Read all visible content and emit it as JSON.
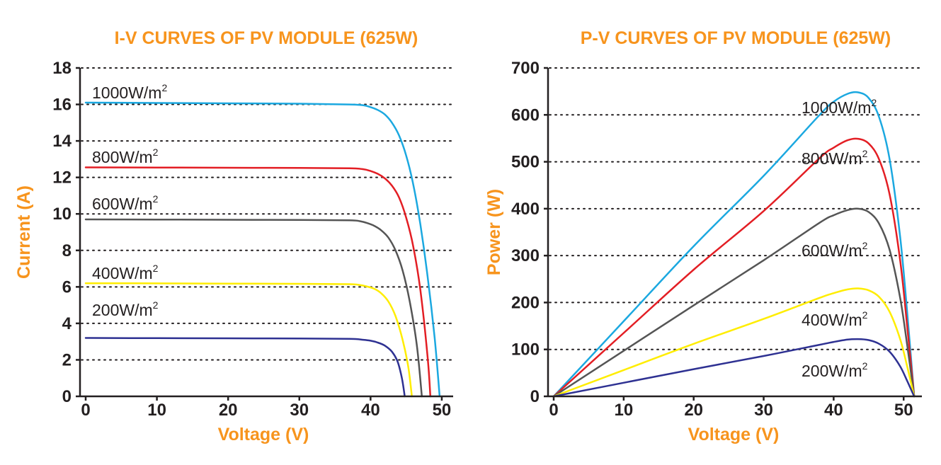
{
  "chart_data": [
    {
      "type": "line",
      "title": "I-V CURVES OF PV MODULE (625W)",
      "xlabel": "Voltage (V)",
      "ylabel": "Current (A)",
      "xlim": [
        0,
        51
      ],
      "ylim": [
        0,
        18
      ],
      "xticks": [
        0,
        10,
        20,
        30,
        40,
        50
      ],
      "yticks": [
        0,
        2,
        4,
        6,
        8,
        10,
        12,
        14,
        16,
        18
      ],
      "grid": "horizontal-dotted",
      "series": [
        {
          "name": "1000W/m",
          "sup": "2",
          "color": "#1ba8e0",
          "x": [
            0,
            10,
            20,
            30,
            37,
            39,
            40,
            41,
            42,
            43,
            44,
            45,
            46,
            47,
            48,
            49,
            49.7
          ],
          "y": [
            16.1,
            16.08,
            16.06,
            16.04,
            16.0,
            15.95,
            15.85,
            15.7,
            15.45,
            15.0,
            14.3,
            13.2,
            11.6,
            9.4,
            6.6,
            3.2,
            0
          ]
        },
        {
          "name": "800W/m",
          "sup": "2",
          "color": "#e31e24",
          "x": [
            0,
            10,
            20,
            30,
            37,
            39,
            40,
            41,
            42,
            43,
            44,
            45,
            46,
            47,
            48,
            48.4
          ],
          "y": [
            12.55,
            12.54,
            12.53,
            12.52,
            12.5,
            12.45,
            12.35,
            12.2,
            11.95,
            11.55,
            10.9,
            9.8,
            8.2,
            5.8,
            2.2,
            0
          ]
        },
        {
          "name": "600W/m",
          "sup": "2",
          "color": "#555555",
          "x": [
            0,
            10,
            20,
            30,
            37,
            38.5,
            39.5,
            40.5,
            41.5,
            42.5,
            43.5,
            44.5,
            45.5,
            46.5,
            47.2
          ],
          "y": [
            9.7,
            9.69,
            9.68,
            9.67,
            9.65,
            9.6,
            9.5,
            9.35,
            9.1,
            8.7,
            8.0,
            6.9,
            5.2,
            2.8,
            0
          ]
        },
        {
          "name": "400W/m",
          "sup": "2",
          "color": "#ffed00",
          "x": [
            0,
            10,
            20,
            30,
            37,
            38.5,
            39.5,
            40.5,
            41.5,
            42.5,
            43.5,
            44.5,
            45.3,
            45.8
          ],
          "y": [
            6.2,
            6.19,
            6.18,
            6.17,
            6.15,
            6.1,
            6.02,
            5.9,
            5.65,
            5.2,
            4.4,
            3.1,
            1.6,
            0
          ]
        },
        {
          "name": "200W/m",
          "sup": "2",
          "color": "#2e3192",
          "x": [
            0,
            10,
            20,
            30,
            37,
            39,
            40,
            41,
            42,
            43,
            43.8,
            44.4,
            44.8
          ],
          "y": [
            3.2,
            3.19,
            3.18,
            3.17,
            3.15,
            3.1,
            3.05,
            2.95,
            2.78,
            2.45,
            1.9,
            1.0,
            0
          ]
        }
      ]
    },
    {
      "type": "line",
      "title": "P-V CURVES OF PV MODULE (625W)",
      "xlabel": "Voltage (V)",
      "ylabel": "Power (W)",
      "xlim": [
        0,
        52
      ],
      "ylim": [
        0,
        700
      ],
      "xticks": [
        0,
        10,
        20,
        30,
        40,
        50
      ],
      "yticks": [
        0,
        100,
        200,
        300,
        400,
        500,
        600,
        700
      ],
      "grid": "horizontal-dotted",
      "series": [
        {
          "name": "1000W/m",
          "sup": "2",
          "color": "#1ba8e0",
          "x": [
            0,
            10,
            20,
            30,
            38,
            40,
            42,
            43.5,
            45,
            46.5,
            48,
            49.5,
            50.5,
            51.5
          ],
          "y": [
            0,
            160,
            320,
            470,
            600,
            628,
            645,
            648,
            636,
            595,
            505,
            340,
            180,
            0
          ]
        },
        {
          "name": "800W/m",
          "sup": "2",
          "color": "#e31e24",
          "x": [
            0,
            10,
            20,
            30,
            38,
            40,
            42,
            43.5,
            45,
            46.5,
            48,
            49.5,
            50.5,
            51.5
          ],
          "y": [
            0,
            135,
            270,
            395,
            508,
            530,
            546,
            549,
            539,
            505,
            430,
            290,
            150,
            0
          ]
        },
        {
          "name": "600W/m",
          "sup": "2",
          "color": "#555555",
          "x": [
            0,
            10,
            20,
            30,
            38,
            40,
            42,
            43.5,
            45,
            46.5,
            48,
            49.5,
            50.5,
            51.5
          ],
          "y": [
            0,
            97,
            194,
            290,
            370,
            386,
            397,
            400,
            393,
            368,
            312,
            210,
            110,
            0
          ]
        },
        {
          "name": "400W/m",
          "sup": "2",
          "color": "#ffed00",
          "x": [
            0,
            10,
            20,
            30,
            38,
            40,
            42,
            43.5,
            45,
            46.5,
            48,
            49.5,
            50.5,
            51.5
          ],
          "y": [
            0,
            56,
            112,
            165,
            210,
            220,
            228,
            230,
            226,
            212,
            180,
            122,
            64,
            0
          ]
        },
        {
          "name": "200W/m",
          "sup": "2",
          "color": "#2e3192",
          "x": [
            0,
            10,
            20,
            30,
            38,
            40,
            42,
            43.5,
            45,
            46.5,
            48,
            49.5,
            50.5,
            51.5
          ],
          "y": [
            0,
            29,
            58,
            86,
            110,
            116,
            121,
            122,
            120,
            112,
            95,
            64,
            33,
            0
          ]
        }
      ]
    }
  ]
}
